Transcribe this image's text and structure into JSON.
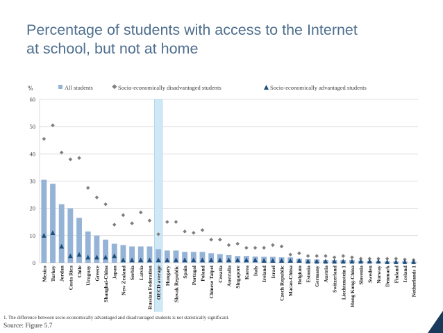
{
  "slide": {
    "title_line1": "Percentage of students with access to the Internet",
    "title_line2": "at school, but not at home",
    "footnote": "1. The difference between socio-economically advantaged and disadvantaged students is not statistically significant.",
    "source": "Source: Figure 5.7"
  },
  "colors": {
    "bar": "#95b3d7",
    "highlight": "#cfe8f6",
    "disadvantaged": "#7f7f7f",
    "advantaged": "#1f4e79",
    "grid": "#bfbfbf",
    "title": "#4f6f8f"
  },
  "chart_data": {
    "type": "bar",
    "ylabel": "%",
    "ylim": [
      0,
      60
    ],
    "yticks": [
      0,
      10,
      20,
      30,
      40,
      50,
      60
    ],
    "highlight_category": "OECD average",
    "legend": [
      "All students",
      "Socio-economically disadvantaged students",
      "Socio-economically advantaged students"
    ],
    "categories": [
      "Mexico",
      "Turkey",
      "Jordan",
      "Costa Rica",
      "Chile",
      "Uruguay",
      "Greece",
      "Shanghai-China",
      "Japan",
      "New Zealand",
      "Serbia",
      "Latvia",
      "Russian Federation",
      "OECD average",
      "Hungary",
      "Slovak Republic",
      "Spain",
      "Portugal",
      "Poland",
      "Chinese Taipei",
      "Croatia",
      "Australia",
      "Singapore",
      "Korea",
      "Italy",
      "Ireland",
      "Israel",
      "Czech Republic",
      "Macao-China",
      "Belgium",
      "Estonia",
      "Germany",
      "Austria",
      "Switzerland",
      "Liechtenstein 1",
      "Hong Kong-China",
      "Slovenia",
      "Sweden",
      "Norway",
      "Denmark",
      "Finland",
      "Iceland",
      "Netherlands 1"
    ],
    "series": [
      {
        "name": "All students",
        "type": "bar",
        "values": [
          30.5,
          29,
          21.5,
          20,
          16.5,
          11.5,
          10,
          8.5,
          7,
          6.5,
          6,
          6,
          6,
          5,
          4.5,
          4.5,
          4,
          4,
          4,
          3.5,
          3.2,
          2.8,
          2.5,
          2.5,
          2.3,
          2.2,
          2.2,
          2,
          2,
          1.5,
          1.3,
          1.2,
          1,
          1,
          1,
          1,
          0.8,
          0.7,
          0.6,
          0.5,
          0.5,
          0.5,
          0.4
        ]
      },
      {
        "name": "Socio-economically disadvantaged students",
        "type": "marker",
        "values": [
          45.5,
          50.5,
          40.5,
          38,
          38.5,
          27.5,
          24,
          21.5,
          14,
          17.5,
          14.5,
          18.5,
          15.5,
          10.5,
          15,
          15,
          11.5,
          11,
          12,
          8.5,
          8.5,
          6.5,
          7,
          5.5,
          5.5,
          5.5,
          6.5,
          6,
          3,
          3.5,
          2.5,
          2.5,
          2.5,
          2,
          2.5,
          2,
          1.5,
          1.5,
          1.5,
          1.5,
          1.5,
          1.2,
          1
        ]
      },
      {
        "name": "Socio-economically advantaged students",
        "type": "marker",
        "values": [
          10,
          11,
          6,
          2.5,
          3,
          2,
          2,
          2,
          2.5,
          1,
          1,
          1,
          1,
          1,
          1,
          1,
          1,
          1,
          1,
          1,
          1,
          1,
          1,
          1,
          1,
          0.8,
          0.8,
          0.8,
          0.8,
          0.8,
          0.5,
          0.5,
          0.5,
          0.5,
          0.5,
          0.5,
          0.5,
          0.5,
          0.5,
          0.3,
          0.3,
          0.3,
          0.3
        ]
      }
    ]
  }
}
